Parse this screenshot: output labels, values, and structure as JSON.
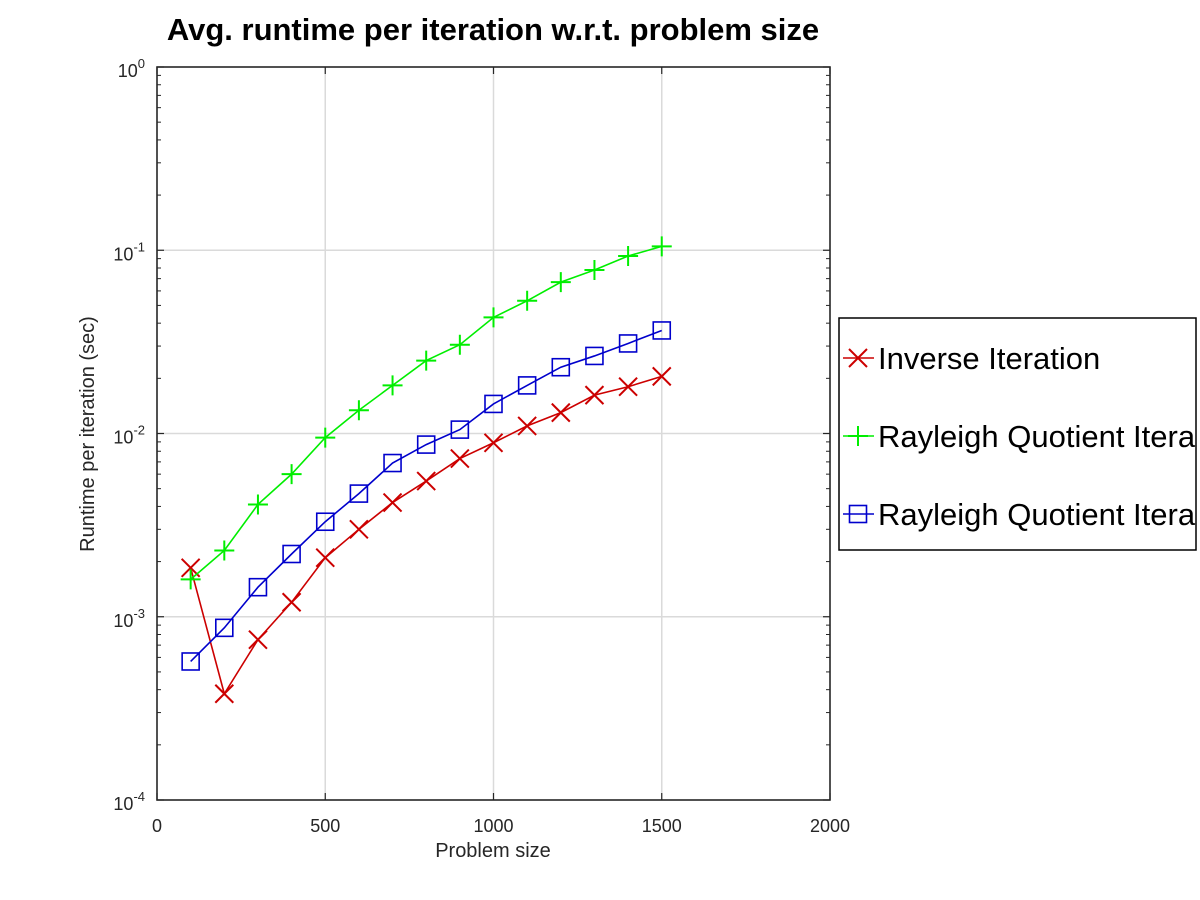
{
  "chart_data": {
    "type": "line",
    "title": "Avg. runtime per iteration w.r.t. problem size",
    "xlabel": "Problem size",
    "ylabel": "Runtime per iteration (sec)",
    "xlim": [
      0,
      2000
    ],
    "ylim": [
      0.0001,
      1
    ],
    "yscale": "log",
    "grid": true,
    "legend_position": "right, outside",
    "x_ticks": [
      "0",
      "500",
      "1000",
      "1500",
      "2000"
    ],
    "y_ticks": [
      {
        "base": "10",
        "exp": "0"
      },
      {
        "base": "10",
        "exp": "-1"
      },
      {
        "base": "10",
        "exp": "-2"
      },
      {
        "base": "10",
        "exp": "-3"
      },
      {
        "base": "10",
        "exp": "-4"
      }
    ],
    "x": [
      100,
      200,
      300,
      400,
      500,
      600,
      700,
      800,
      900,
      1000,
      1100,
      1200,
      1300,
      1400,
      1500
    ],
    "series": [
      {
        "name": "Inverse Iteration",
        "color": "#cc0000",
        "marker": "x",
        "values": [
          0.00185,
          0.00038,
          0.00075,
          0.0012,
          0.0021,
          0.003,
          0.0042,
          0.0055,
          0.0073,
          0.0089,
          0.011,
          0.013,
          0.0162,
          0.018,
          0.0205
        ]
      },
      {
        "name": "Rayleigh Quotient Itera",
        "color": "#00ee00",
        "marker": "+",
        "values": [
          0.0016,
          0.0023,
          0.0041,
          0.006,
          0.0095,
          0.0134,
          0.0183,
          0.025,
          0.0305,
          0.043,
          0.053,
          0.067,
          0.078,
          0.093,
          0.105
        ]
      },
      {
        "name": "Rayleigh Quotient Itera",
        "color": "#0000cc",
        "marker": "square",
        "values": [
          0.00057,
          0.00087,
          0.00145,
          0.0022,
          0.0033,
          0.0047,
          0.0069,
          0.0087,
          0.0105,
          0.0145,
          0.0183,
          0.023,
          0.0265,
          0.031,
          0.0365
        ]
      }
    ]
  }
}
